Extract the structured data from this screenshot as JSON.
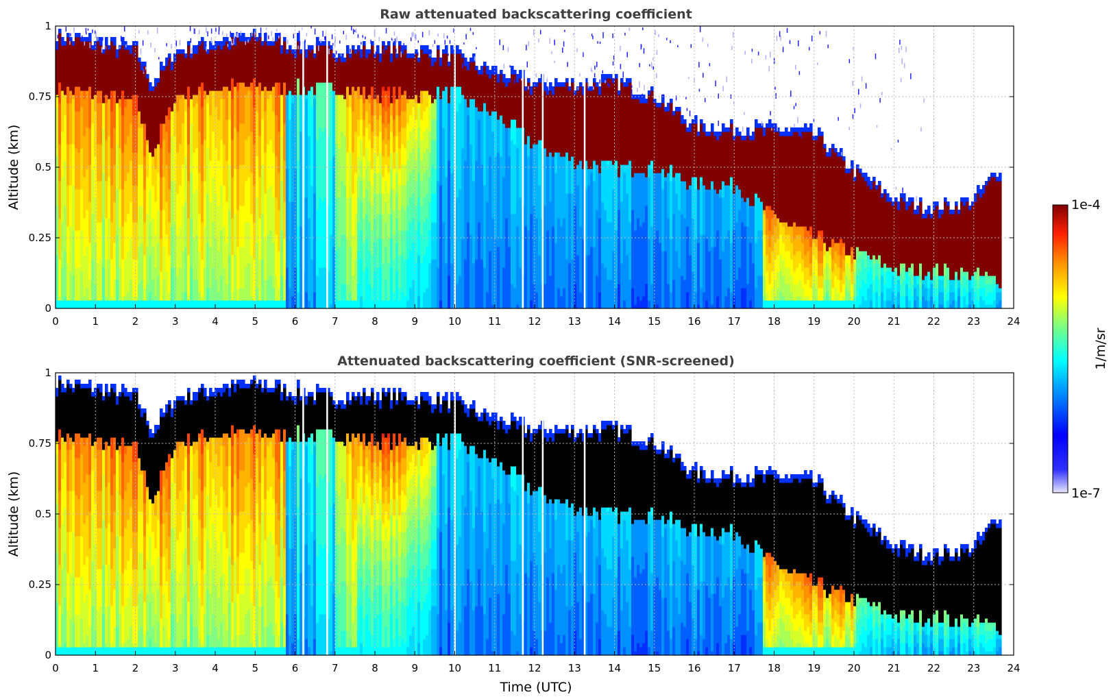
{
  "chart_data": [
    {
      "type": "heatmap",
      "title": "Raw attenuated backscattering coefficient",
      "xlabel": "",
      "ylabel": "Altitude (km)",
      "xlim": [
        0,
        24
      ],
      "ylim": [
        0,
        1
      ],
      "xticks": [
        "0",
        "1",
        "2",
        "3",
        "4",
        "5",
        "6",
        "7",
        "8",
        "9",
        "10",
        "11",
        "12",
        "13",
        "14",
        "15",
        "16",
        "17",
        "18",
        "19",
        "20",
        "21",
        "22",
        "23",
        "24"
      ],
      "yticks": [
        "0",
        "0.25",
        "0.5",
        "0.75",
        "1"
      ],
      "grid": true,
      "data_end_hour": 23.7,
      "cloud_top_km": {
        "hours": [
          0,
          1,
          2,
          2.4,
          3,
          4,
          5,
          6,
          7,
          8,
          9,
          10,
          11,
          12,
          13,
          14,
          15,
          16,
          17,
          18,
          19,
          20,
          21,
          22,
          23,
          23.7
        ],
        "values": [
          0.95,
          0.93,
          0.9,
          0.78,
          0.9,
          0.93,
          0.95,
          0.92,
          0.9,
          0.91,
          0.9,
          0.88,
          0.82,
          0.78,
          0.78,
          0.79,
          0.74,
          0.63,
          0.62,
          0.62,
          0.6,
          0.47,
          0.37,
          0.34,
          0.37,
          0.5
        ]
      },
      "cloud_base_km": {
        "hours": [
          0,
          1,
          2,
          2.4,
          3,
          4,
          5,
          6,
          7,
          8,
          9,
          10,
          11,
          12,
          13,
          14,
          15,
          16,
          17,
          18,
          19,
          20,
          21,
          22,
          23,
          23.7
        ],
        "values": [
          0.78,
          0.76,
          0.73,
          0.55,
          0.76,
          0.78,
          0.79,
          0.78,
          0.78,
          0.76,
          0.76,
          0.76,
          0.68,
          0.58,
          0.52,
          0.5,
          0.5,
          0.44,
          0.44,
          0.32,
          0.25,
          0.2,
          0.14,
          0.13,
          0.12,
          0.1
        ]
      },
      "gap_hours": [
        6.2,
        6.8,
        10.0,
        11.7,
        12.2,
        13.25
      ]
    },
    {
      "type": "heatmap",
      "title": "Attenuated backscattering coefficient (SNR-screened)",
      "xlabel": "Time (UTC)",
      "ylabel": "Altitude (km)",
      "xlim": [
        0,
        24
      ],
      "ylim": [
        0,
        1
      ],
      "xticks": [
        "0",
        "1",
        "2",
        "3",
        "4",
        "5",
        "6",
        "7",
        "8",
        "9",
        "10",
        "11",
        "12",
        "13",
        "14",
        "15",
        "16",
        "17",
        "18",
        "19",
        "20",
        "21",
        "22",
        "23",
        "24"
      ],
      "yticks": [
        "0",
        "0.25",
        "0.5",
        "0.75",
        "1"
      ],
      "grid": true,
      "saturated_color": "#000000"
    }
  ],
  "colorbar": {
    "max_label": "1e-4",
    "min_label": "1e-7",
    "unit_label": "1/m/sr",
    "colormap": [
      "#e8e8ff",
      "#0000ff",
      "#0090ff",
      "#00ffff",
      "#80ff80",
      "#ffff00",
      "#ff9000",
      "#ff2000",
      "#800000"
    ]
  }
}
